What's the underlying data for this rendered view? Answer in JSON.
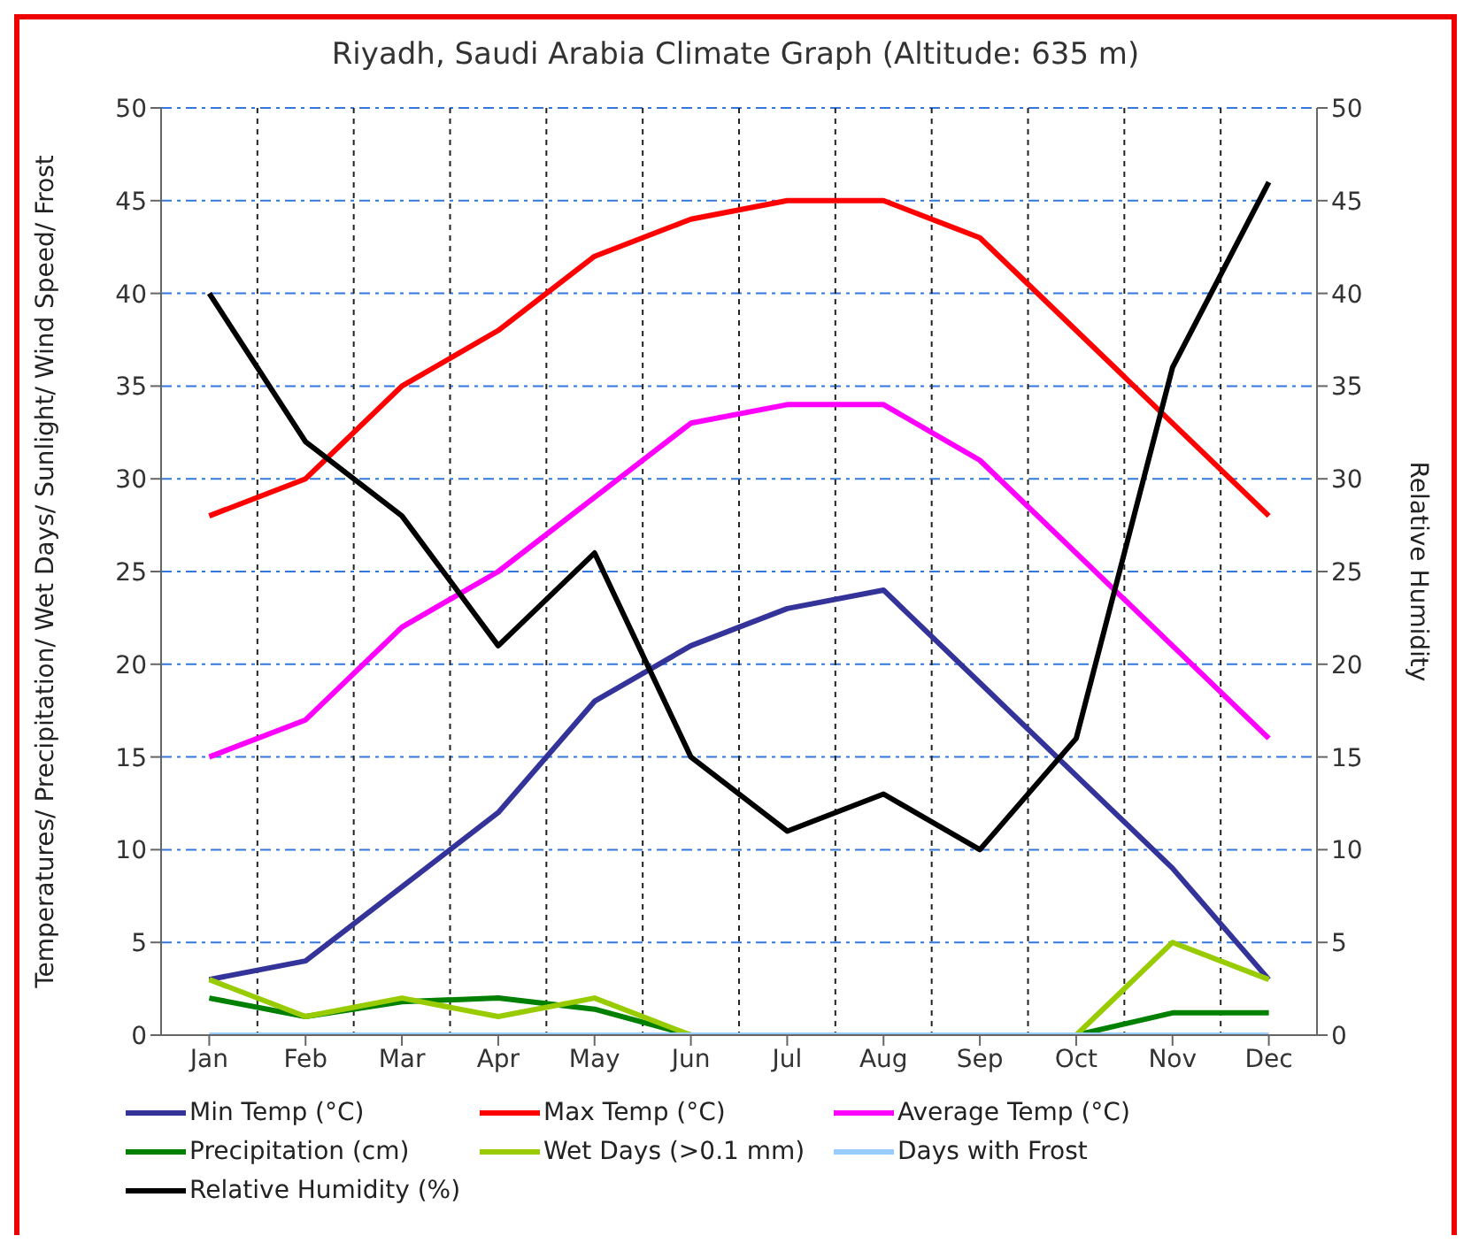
{
  "chart_data": {
    "type": "line",
    "title": "Riyadh, Saudi Arabia Climate Graph (Altitude: 635 m)",
    "ylabel": "Temperatures/ Precipitation/ Wet Days/ Sunlight/ Wind Speed/ Frost",
    "y2label": "Relative Humidity",
    "categories": [
      "Jan",
      "Feb",
      "Mar",
      "Apr",
      "May",
      "Jun",
      "Jul",
      "Aug",
      "Sep",
      "Oct",
      "Nov",
      "Dec"
    ],
    "series": [
      {
        "name": "Min Temp (°C)",
        "color": "#333399",
        "values": [
          3,
          4,
          8,
          12,
          18,
          21,
          23,
          24,
          19,
          14,
          9,
          3
        ]
      },
      {
        "name": "Max Temp (°C)",
        "color": "#ff0000",
        "values": [
          28,
          30,
          35,
          38,
          42,
          44,
          45,
          45,
          43,
          38,
          33,
          28
        ]
      },
      {
        "name": "Average Temp (°C)",
        "color": "#ff00ff",
        "values": [
          15,
          17,
          22,
          25,
          29,
          33,
          34,
          34,
          31,
          26,
          21,
          16
        ]
      },
      {
        "name": "Precipitation (cm)",
        "color": "#008000",
        "values": [
          2,
          1,
          1.8,
          2,
          1.4,
          0,
          0,
          0,
          0,
          0,
          1.2,
          1.2
        ]
      },
      {
        "name": "Wet Days (>0.1 mm)",
        "color": "#99cc00",
        "values": [
          3,
          1,
          2,
          1,
          2,
          0,
          0,
          0,
          0,
          0,
          5,
          3
        ]
      },
      {
        "name": "Days with Frost",
        "color": "#99ccff",
        "values": [
          0,
          0,
          0,
          0,
          0,
          0,
          0,
          0,
          0,
          0,
          0,
          0
        ]
      },
      {
        "name": "Relative Humidity (%)",
        "color": "#000000",
        "axis": "y2",
        "values": [
          40,
          32,
          28,
          21,
          26,
          15,
          11,
          13,
          10,
          16,
          36,
          46
        ]
      }
    ],
    "ylim": [
      0,
      50
    ],
    "yticks": [
      0,
      5,
      10,
      15,
      20,
      25,
      30,
      35,
      40,
      45,
      50
    ],
    "y2lim": [
      0,
      50
    ],
    "y2ticks": [
      0,
      5,
      10,
      15,
      20,
      25,
      30,
      35,
      40,
      45,
      50
    ],
    "grid": true,
    "legend": "bottom",
    "marker": "none",
    "line_style": "solid"
  }
}
